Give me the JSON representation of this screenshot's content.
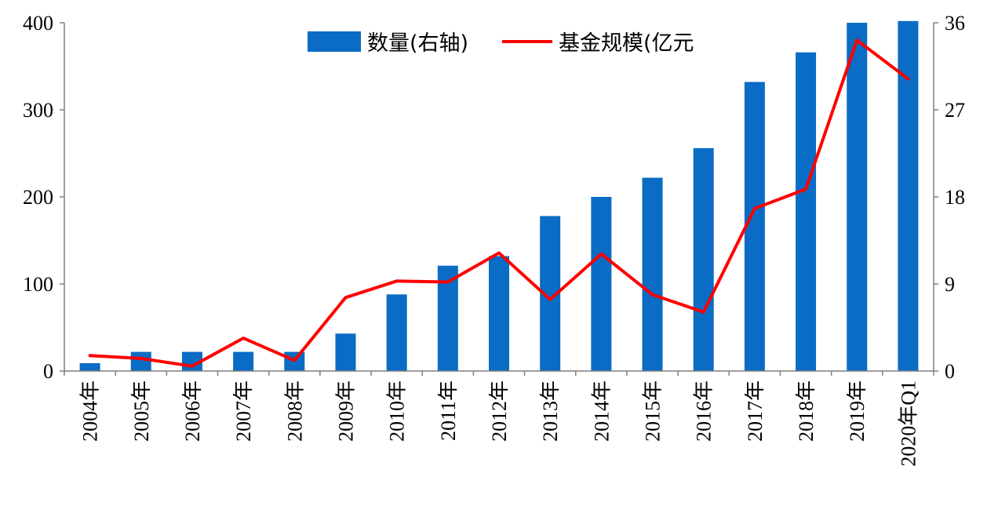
{
  "chart_data": {
    "type": "bar",
    "categories": [
      "2004年",
      "2005年",
      "2006年",
      "2007年",
      "2008年",
      "2009年",
      "2010年",
      "2011年",
      "2012年",
      "2013年",
      "2014年",
      "2015年",
      "2016年",
      "2017年",
      "2018年",
      "2019年",
      "2020年Q1"
    ],
    "series": [
      {
        "name": "数量(右轴)",
        "type": "bar",
        "axis": "left",
        "color": "#0a6cc4",
        "values": [
          9,
          22,
          22,
          22,
          22,
          43,
          88,
          121,
          132,
          178,
          200,
          222,
          256,
          332,
          366,
          400,
          402
        ]
      },
      {
        "name": "基金规模(亿元",
        "type": "line",
        "axis": "right",
        "color": "#ff0000",
        "values": [
          1.6,
          1.3,
          0.5,
          3.4,
          1.1,
          7.6,
          9.3,
          9.2,
          12.2,
          7.4,
          12.1,
          7.9,
          6.1,
          16.8,
          18.8,
          34.2,
          30.2
        ]
      }
    ],
    "y_left": {
      "ylim": [
        0,
        400
      ],
      "ticks": [
        "0",
        "100",
        "200",
        "300",
        "400"
      ]
    },
    "y_right": {
      "ylim": [
        0,
        36
      ],
      "ticks": [
        "0",
        "9",
        "18",
        "27",
        "36"
      ]
    },
    "legend_position": "top-center",
    "grid": false
  }
}
